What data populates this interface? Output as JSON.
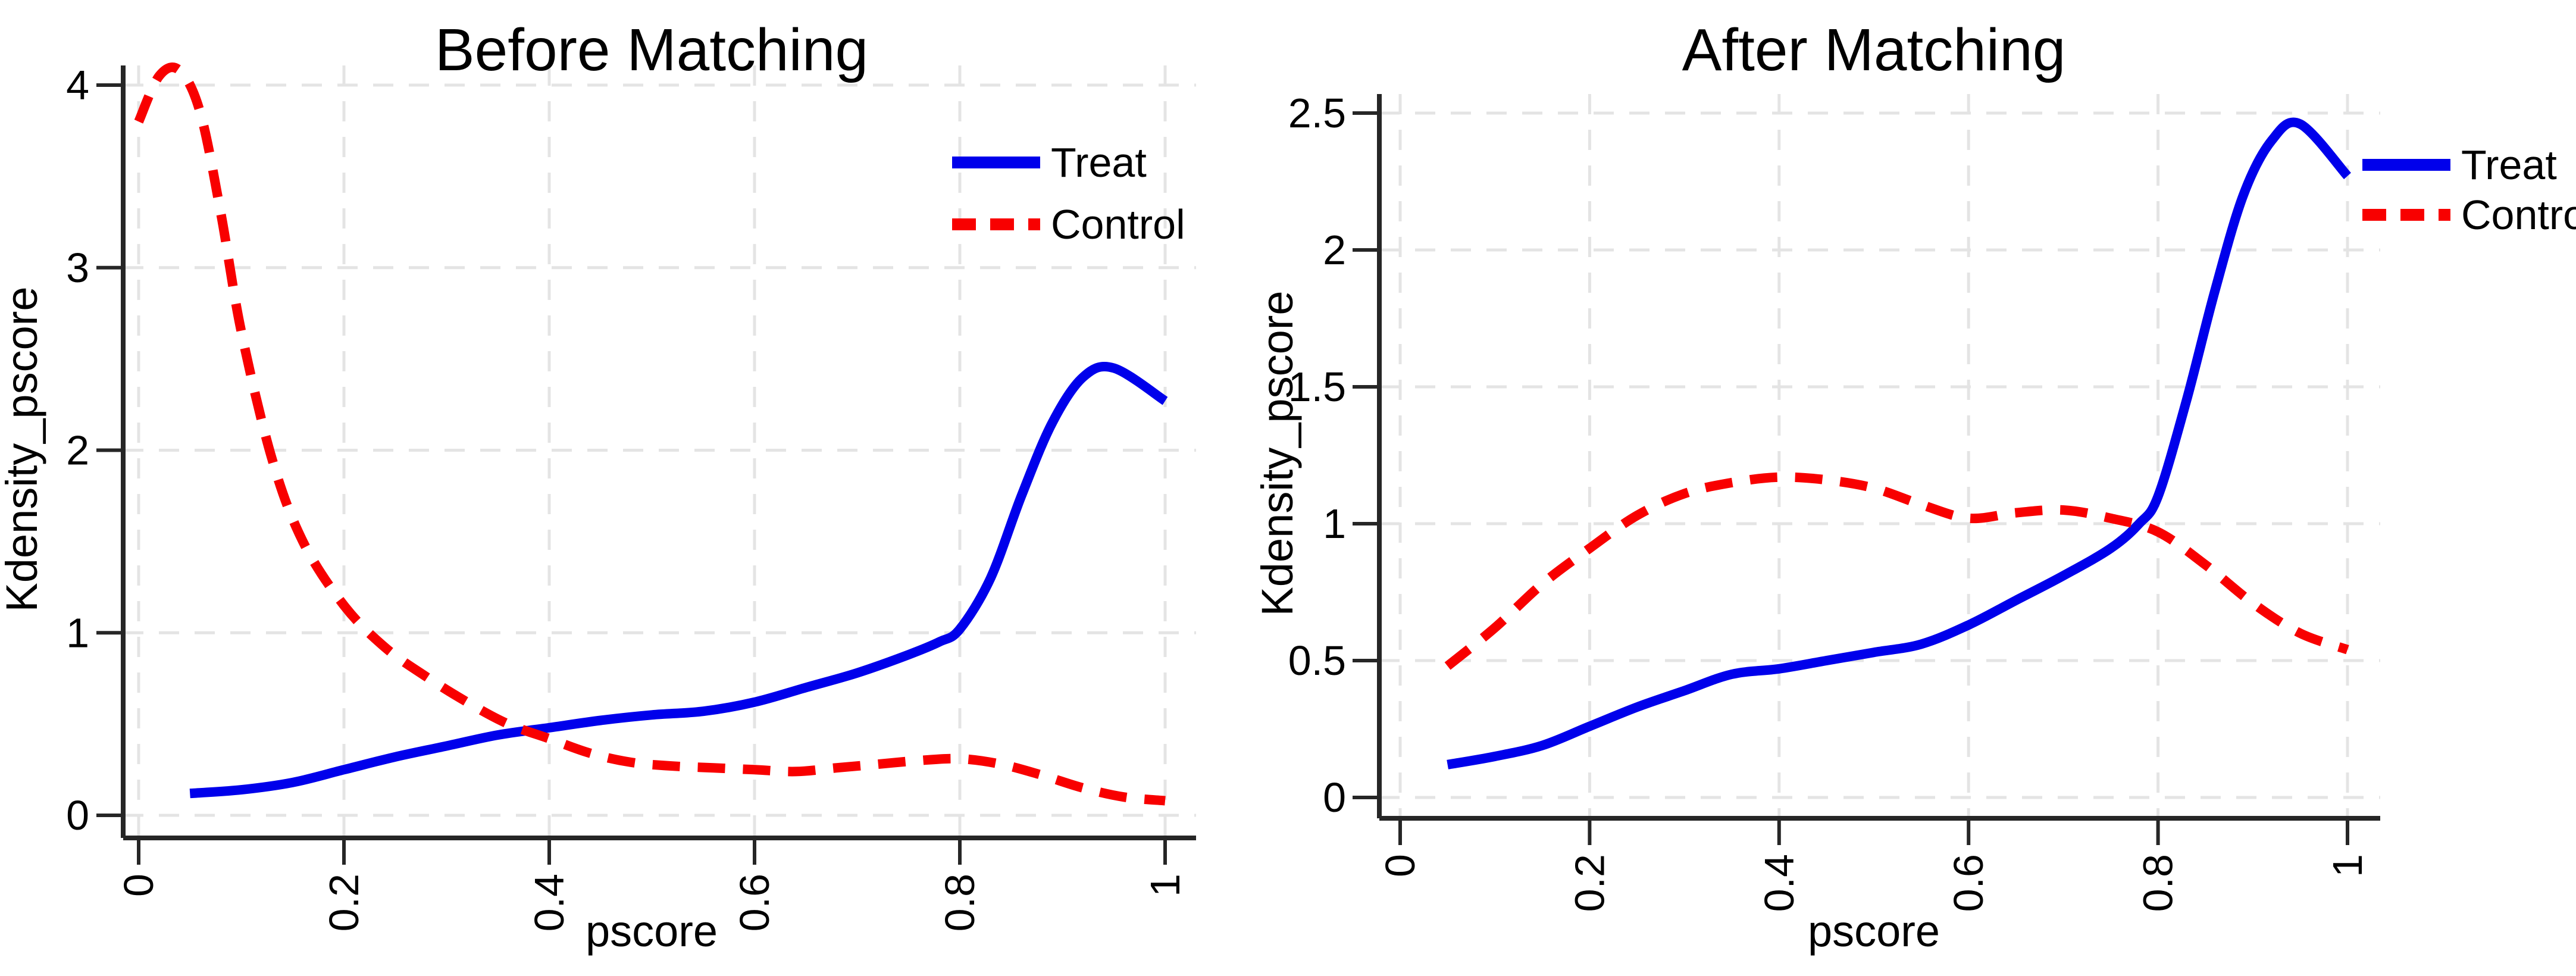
{
  "figure": {
    "background": "#ffffff",
    "left_panel_title": "Before Matching",
    "right_panel_title": "After Matching"
  },
  "colors": {
    "treat": "#0000eb",
    "control": "#f80000",
    "grid": "#e4e4e4",
    "axis": "#262626",
    "text": "#000000"
  },
  "chart_data": [
    {
      "type": "line",
      "title": "Before Matching",
      "xlabel": "pscore",
      "ylabel": "Kdensity_pscore",
      "xlim": [
        0,
        1.03
      ],
      "ylim": [
        0,
        4.3
      ],
      "grid": true,
      "legend_position": "top-right-inside",
      "xticks": [
        0,
        0.2,
        0.4,
        0.6,
        0.8,
        1
      ],
      "xtick_labels": [
        "0",
        "0.2",
        "0.4",
        "0.6",
        "0.8",
        "1"
      ],
      "yticks": [
        0,
        1,
        2,
        3,
        4
      ],
      "ytick_labels": [
        "0",
        "1",
        "2",
        "3",
        "4"
      ],
      "series": [
        {
          "name": "Treat",
          "style": "solid",
          "color_key": "treat",
          "x": [
            0.05,
            0.1,
            0.15,
            0.2,
            0.25,
            0.3,
            0.35,
            0.4,
            0.45,
            0.5,
            0.55,
            0.6,
            0.65,
            0.7,
            0.75,
            0.78,
            0.8,
            0.83,
            0.86,
            0.89,
            0.92,
            0.95,
            1.0
          ],
          "y": [
            0.12,
            0.14,
            0.18,
            0.25,
            0.32,
            0.38,
            0.44,
            0.48,
            0.52,
            0.55,
            0.57,
            0.62,
            0.7,
            0.78,
            0.88,
            0.95,
            1.02,
            1.3,
            1.75,
            2.15,
            2.4,
            2.45,
            2.27
          ]
        },
        {
          "name": "Control",
          "style": "dashed",
          "color_key": "control",
          "x": [
            0.0,
            0.02,
            0.04,
            0.06,
            0.08,
            0.1,
            0.13,
            0.16,
            0.2,
            0.24,
            0.28,
            0.32,
            0.36,
            0.4,
            0.44,
            0.48,
            0.52,
            0.56,
            0.6,
            0.64,
            0.68,
            0.72,
            0.76,
            0.8,
            0.84,
            0.88,
            0.92,
            0.96,
            1.0
          ],
          "y": [
            3.8,
            4.05,
            4.08,
            3.85,
            3.3,
            2.65,
            1.95,
            1.5,
            1.15,
            0.92,
            0.76,
            0.62,
            0.5,
            0.42,
            0.34,
            0.29,
            0.27,
            0.26,
            0.25,
            0.24,
            0.26,
            0.28,
            0.3,
            0.31,
            0.28,
            0.22,
            0.15,
            0.1,
            0.08
          ]
        }
      ]
    },
    {
      "type": "line",
      "title": "After Matching",
      "xlabel": "pscore",
      "ylabel": "Kdensity_pscore",
      "xlim": [
        0,
        1.03
      ],
      "ylim": [
        0,
        2.6
      ],
      "grid": true,
      "legend_position": "top-right-outside",
      "xticks": [
        0,
        0.2,
        0.4,
        0.6,
        0.8,
        1
      ],
      "xtick_labels": [
        "0",
        "0.2",
        "0.4",
        "0.6",
        "0.8",
        "1"
      ],
      "yticks": [
        0,
        0.5,
        1,
        1.5,
        2,
        2.5
      ],
      "ytick_labels": [
        "0",
        "0.5",
        "1",
        "1.5",
        "2",
        "2.5"
      ],
      "series": [
        {
          "name": "Treat",
          "style": "solid",
          "color_key": "treat",
          "x": [
            0.05,
            0.1,
            0.15,
            0.2,
            0.25,
            0.3,
            0.35,
            0.4,
            0.45,
            0.5,
            0.55,
            0.6,
            0.65,
            0.7,
            0.75,
            0.78,
            0.8,
            0.83,
            0.86,
            0.89,
            0.92,
            0.95,
            1.0
          ],
          "y": [
            0.12,
            0.15,
            0.19,
            0.26,
            0.33,
            0.39,
            0.45,
            0.47,
            0.5,
            0.53,
            0.56,
            0.63,
            0.72,
            0.81,
            0.91,
            1.0,
            1.1,
            1.45,
            1.85,
            2.2,
            2.4,
            2.46,
            2.27
          ]
        },
        {
          "name": "Control",
          "style": "dashed",
          "color_key": "control",
          "x": [
            0.05,
            0.1,
            0.15,
            0.2,
            0.25,
            0.3,
            0.35,
            0.4,
            0.45,
            0.5,
            0.55,
            0.6,
            0.65,
            0.7,
            0.75,
            0.8,
            0.85,
            0.9,
            0.95,
            1.0
          ],
          "y": [
            0.48,
            0.62,
            0.78,
            0.91,
            1.03,
            1.11,
            1.15,
            1.17,
            1.16,
            1.13,
            1.07,
            1.02,
            1.04,
            1.05,
            1.02,
            0.97,
            0.85,
            0.71,
            0.6,
            0.54
          ]
        }
      ]
    }
  ]
}
